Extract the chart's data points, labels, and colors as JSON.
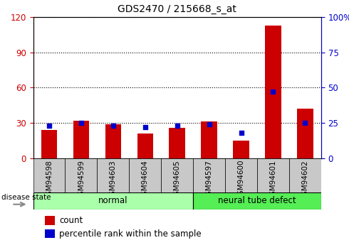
{
  "title": "GDS2470 / 215668_s_at",
  "samples": [
    "GSM94598",
    "GSM94599",
    "GSM94603",
    "GSM94604",
    "GSM94605",
    "GSM94597",
    "GSM94600",
    "GSM94601",
    "GSM94602"
  ],
  "count_values": [
    24,
    32,
    29,
    21,
    26,
    31,
    15,
    113,
    42
  ],
  "percentile_values": [
    23,
    25,
    23,
    22,
    23,
    24,
    18,
    47,
    25
  ],
  "groups": [
    {
      "label": "normal",
      "start": 0,
      "end": 5,
      "color": "#aaffaa"
    },
    {
      "label": "neural tube defect",
      "start": 5,
      "end": 9,
      "color": "#55ee55"
    }
  ],
  "left_ylim": [
    0,
    120
  ],
  "right_ylim": [
    0,
    100
  ],
  "left_yticks": [
    0,
    30,
    60,
    90,
    120
  ],
  "right_yticks": [
    0,
    25,
    50,
    75,
    100
  ],
  "right_yticklabels": [
    "0",
    "25",
    "50",
    "75",
    "100%"
  ],
  "left_ylabel_color": "#cc0000",
  "right_ylabel_color": "#0000cc",
  "bar_color": "#cc0000",
  "dot_color": "#0000cc",
  "bar_width": 0.5,
  "dot_size": 22,
  "legend_count_label": "count",
  "legend_percentile_label": "percentile rank within the sample",
  "disease_state_label": "disease state",
  "background_color": "#ffffff",
  "tick_bg_color": "#c8c8c8",
  "title_fontsize": 10
}
